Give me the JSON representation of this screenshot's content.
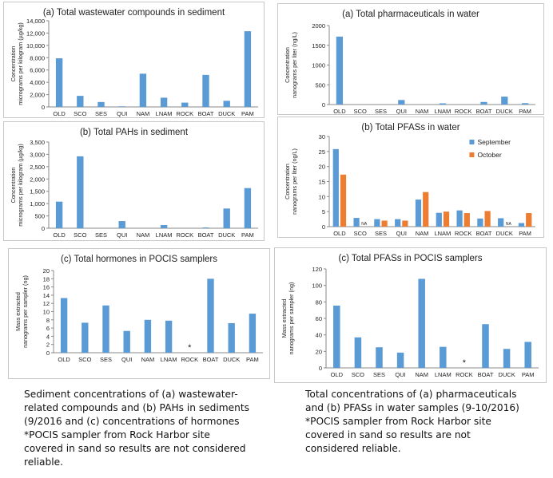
{
  "colors": {
    "blue": "#5B9BD5",
    "orange": "#ED7D31",
    "axis": "#888888",
    "grid": "#d9d9d9",
    "text": "#222222"
  },
  "chart_data": [
    {
      "id": "a",
      "type": "bar",
      "title": "(a) Total wastewater compounds in sediment",
      "ylabel_lines": [
        "Concentration",
        "micrograms per kilogram (µg/kg)"
      ],
      "categories": [
        "OLD",
        "SCO",
        "SES",
        "QUI",
        "NAM",
        "LNAM",
        "ROCK",
        "BOAT",
        "DUCK",
        "PAM"
      ],
      "yticks": [
        "0",
        "2,000",
        "4,000",
        "6,000",
        "8,000",
        "10,000",
        "12,000",
        "14,000"
      ],
      "ylim": [
        0,
        14000
      ],
      "series": [
        {
          "name": "Sediment",
          "values": [
            7900,
            1800,
            800,
            100,
            5400,
            1500,
            700,
            5200,
            1000,
            12300
          ]
        }
      ]
    },
    {
      "id": "b",
      "type": "bar",
      "title": "(b) Total PAHs in sediment",
      "ylabel_lines": [
        "Concentration",
        "micrograms per kilogram (µg/kg)"
      ],
      "categories": [
        "OLD",
        "SCO",
        "SES",
        "QUI",
        "NAM",
        "LNAM",
        "ROCK",
        "BOAT",
        "DUCK",
        "PAM"
      ],
      "yticks": [
        "0",
        "500",
        "1,000",
        "1,500",
        "2,000",
        "2,500",
        "3,000",
        "3,500"
      ],
      "ylim": [
        0,
        3500
      ],
      "series": [
        {
          "name": "Sediment",
          "values": [
            1080,
            2920,
            0,
            290,
            0,
            130,
            0,
            30,
            800,
            1630
          ]
        }
      ]
    },
    {
      "id": "c",
      "type": "bar",
      "title": "(c) Total hormones in POCIS samplers",
      "ylabel_lines": [
        "Mass extracted",
        "nanograms per sampler (ng)"
      ],
      "categories": [
        "OLD",
        "SCO",
        "SES",
        "QUI",
        "NAM",
        "LNAM",
        "ROCK",
        "BOAT",
        "DUCK",
        "PAM"
      ],
      "yticks": [
        "0",
        "2",
        "4",
        "6",
        "8",
        "10",
        "12",
        "14",
        "16",
        "18",
        "20"
      ],
      "ylim": [
        0,
        20
      ],
      "series": [
        {
          "name": "POCIS",
          "values": [
            13.3,
            7.3,
            11.5,
            5.3,
            8.0,
            7.8,
            null,
            18.0,
            7.2,
            9.5
          ]
        }
      ],
      "annotations": [
        {
          "category": "ROCK",
          "text": "*"
        }
      ]
    },
    {
      "id": "d",
      "type": "bar",
      "title": "(a) Total pharmaceuticals in water",
      "ylabel_lines": [
        "Concentration",
        "nanograms per liter (ng/L)"
      ],
      "categories": [
        "OLD",
        "SCO",
        "SES",
        "QUI",
        "NAM",
        "LNAM",
        "ROCK",
        "BOAT",
        "DUCK",
        "PAM"
      ],
      "yticks": [
        "0",
        "500",
        "1000",
        "1500",
        "2000"
      ],
      "ylim": [
        0,
        2000
      ],
      "series": [
        {
          "name": "Water",
          "values": [
            1720,
            0,
            0,
            115,
            0,
            30,
            0,
            65,
            200,
            35
          ]
        }
      ]
    },
    {
      "id": "e",
      "type": "bar",
      "title": "(b) Total PFASs in water",
      "ylabel_lines": [
        "Concentration",
        "nanograms per liter (ng/L)"
      ],
      "categories": [
        "OLD",
        "SCO",
        "SES",
        "QUI",
        "NAM",
        "LNAM",
        "ROCK",
        "BOAT",
        "DUCK",
        "PAM"
      ],
      "yticks": [
        "0",
        "5",
        "10",
        "15",
        "20",
        "25",
        "30"
      ],
      "ylim": [
        0,
        30
      ],
      "legend": "top-right",
      "series": [
        {
          "name": "September",
          "values": [
            25.8,
            2.9,
            2.5,
            2.5,
            9.0,
            4.6,
            5.4,
            2.7,
            2.8,
            1.2
          ]
        },
        {
          "name": "October",
          "values": [
            17.3,
            null,
            2.0,
            2.0,
            11.5,
            5.0,
            4.5,
            5.2,
            null,
            4.5
          ]
        }
      ],
      "na_labels": [
        {
          "category": "SCO",
          "text": "NA"
        },
        {
          "category": "DUCK",
          "text": "NA"
        }
      ]
    },
    {
      "id": "f",
      "type": "bar",
      "title": "(c) Total PFASs in POCIS samplers",
      "ylabel_lines": [
        "Mass extracted",
        "nanograms per sampler (ng)"
      ],
      "categories": [
        "OLD",
        "SCO",
        "SES",
        "QUI",
        "NAM",
        "LNAM",
        "ROCK",
        "BOAT",
        "DUCK",
        "PAM"
      ],
      "yticks": [
        "0",
        "20",
        "40",
        "60",
        "80",
        "100",
        "120"
      ],
      "ylim": [
        0,
        120
      ],
      "series": [
        {
          "name": "POCIS",
          "values": [
            75.5,
            37.0,
            25.0,
            18.5,
            108.0,
            25.5,
            null,
            53.0,
            23.0,
            31.5
          ]
        }
      ],
      "annotations": [
        {
          "category": "ROCK",
          "text": "*"
        }
      ]
    }
  ],
  "captions": {
    "left": [
      "Sediment concentrations of (a) wastewater-",
      "related compounds and (b) PAHs in sediments",
      "(9/2016 and (c) concentrations of hormones",
      "*POCIS sampler from  Rock Harbor site",
      "covered in sand so results are not considered",
      "reliable."
    ],
    "right": [
      "Total concentrations of (a) pharmaceuticals",
      "and (b) PFASs in water samples (9-10/2016)",
      "*POCIS sampler from  Rock Harbor site",
      "covered in sand so results are not",
      "considered reliable."
    ]
  }
}
